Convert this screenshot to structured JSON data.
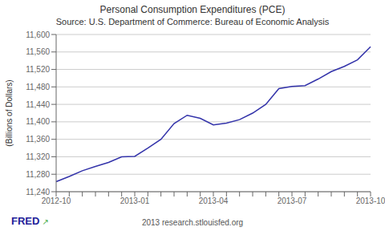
{
  "chart_data": {
    "type": "line",
    "title": "Personal Consumption Expenditures (PCE)",
    "subtitle": "Source: U.S. Department of Commerce: Bureau of Economic Analysis",
    "ylabel": "(Billions of Dollars)",
    "annotations": [
      "2013 research.stlouisfed.org",
      "FRED",
      "↗"
    ],
    "categories": [
      "2012-10",
      null,
      null,
      null,
      null,
      null,
      "2013-01",
      null,
      null,
      null,
      null,
      null,
      "2013-04",
      null,
      null,
      null,
      null,
      null,
      "2013-07",
      null,
      null,
      null,
      null,
      null,
      "2013-10"
    ],
    "values": [
      11263,
      11275,
      11288,
      11298,
      11307,
      11320,
      11321,
      11340,
      11360,
      11396,
      11415,
      11408,
      11393,
      11397,
      11405,
      11420,
      11440,
      11476,
      11481,
      11483,
      11498,
      11515,
      11527,
      11542,
      11572
    ],
    "color": "#3333aa",
    "ylim": [
      11240,
      11600
    ],
    "yticks": [
      {
        "value": 11240,
        "label": "11,240"
      },
      {
        "value": 11280,
        "label": "11,280"
      },
      {
        "value": 11320,
        "label": "11,320"
      },
      {
        "value": 11360,
        "label": "11,360"
      },
      {
        "value": 11400,
        "label": "11,400"
      },
      {
        "value": 11440,
        "label": "11,440"
      },
      {
        "value": 11480,
        "label": "11,480"
      },
      {
        "value": 11520,
        "label": "11,520"
      },
      {
        "value": 11560,
        "label": "11,560"
      },
      {
        "value": 11600,
        "label": "11,600"
      }
    ],
    "grid": true
  }
}
